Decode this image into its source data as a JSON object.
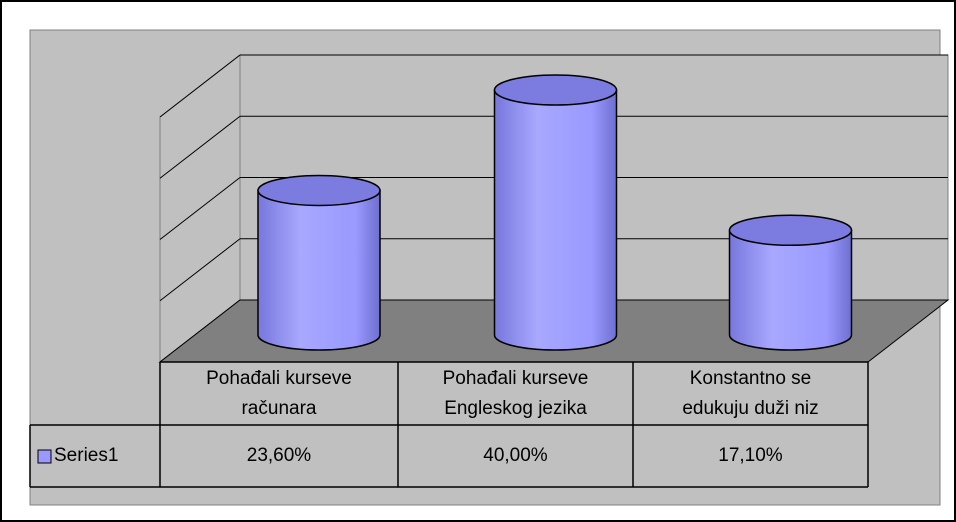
{
  "chart_data": {
    "type": "cylinder",
    "categories": [
      "Pohađali kurseve\nračunara",
      "Pohađali kurseve\nEngleskog jezika",
      "Konstantno se\nedukuju duži niz"
    ],
    "series": [
      {
        "name": "Series1",
        "color": "#9999ff",
        "values": [
          23.6,
          40.0,
          17.1
        ],
        "value_labels": [
          "23,60%",
          "40,00%",
          "17,10%"
        ]
      }
    ],
    "ylim": [
      0,
      40
    ],
    "yticks": [
      0,
      10,
      20,
      30,
      40
    ],
    "grid": true
  }
}
